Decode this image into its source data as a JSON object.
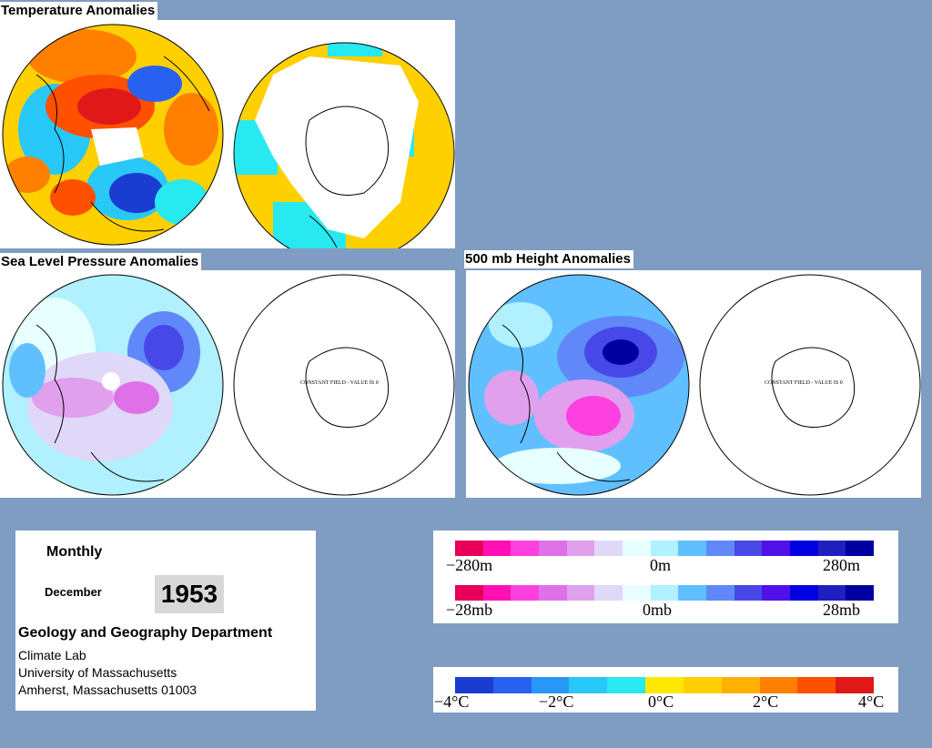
{
  "panels": {
    "temperature": {
      "title": "Temperature Anomalies"
    },
    "slp": {
      "title": "Sea Level Pressure Anomalies",
      "constant_note": "CONSTANT FIELD - VALUE IS 0"
    },
    "h500": {
      "title": "500 mb Height Anomalies",
      "constant_note": "CONSTANT FIELD - VALUE IS 0"
    }
  },
  "info": {
    "period": "Monthly",
    "month": "December",
    "year": "1953",
    "department": "Geology and Geography Department",
    "lab": "Climate Lab",
    "university": "University of Massachusetts",
    "address": "Amherst, Massachusetts 01003"
  },
  "legend_height": {
    "min": "−280m",
    "mid": "0m",
    "max": "280m"
  },
  "legend_pressure": {
    "min": "−28mb",
    "mid": "0mb",
    "max": "28mb"
  },
  "legend_temp": {
    "t1": "−4°C",
    "t2": "−2°C",
    "t3": "0°C",
    "t4": "2°C",
    "t5": "4°C"
  },
  "colors": {
    "background": "#7f9cc2",
    "pressure_scale": [
      "#e8005a",
      "#ff10b4",
      "#ff40e0",
      "#e070e8",
      "#e0a0ee",
      "#e0d8f8",
      "#e8ffff",
      "#b0f0ff",
      "#60c0ff",
      "#6088f8",
      "#4848e8",
      "#5010e8",
      "#0000e0",
      "#2020c0",
      "#0000a0"
    ],
    "temp_scale": [
      "#1a3cd0",
      "#2860f0",
      "#2898f8",
      "#28c8f8",
      "#28e8f0",
      "#ffe800",
      "#ffd000",
      "#ffb000",
      "#ff8000",
      "#ff5000",
      "#e01818"
    ]
  }
}
